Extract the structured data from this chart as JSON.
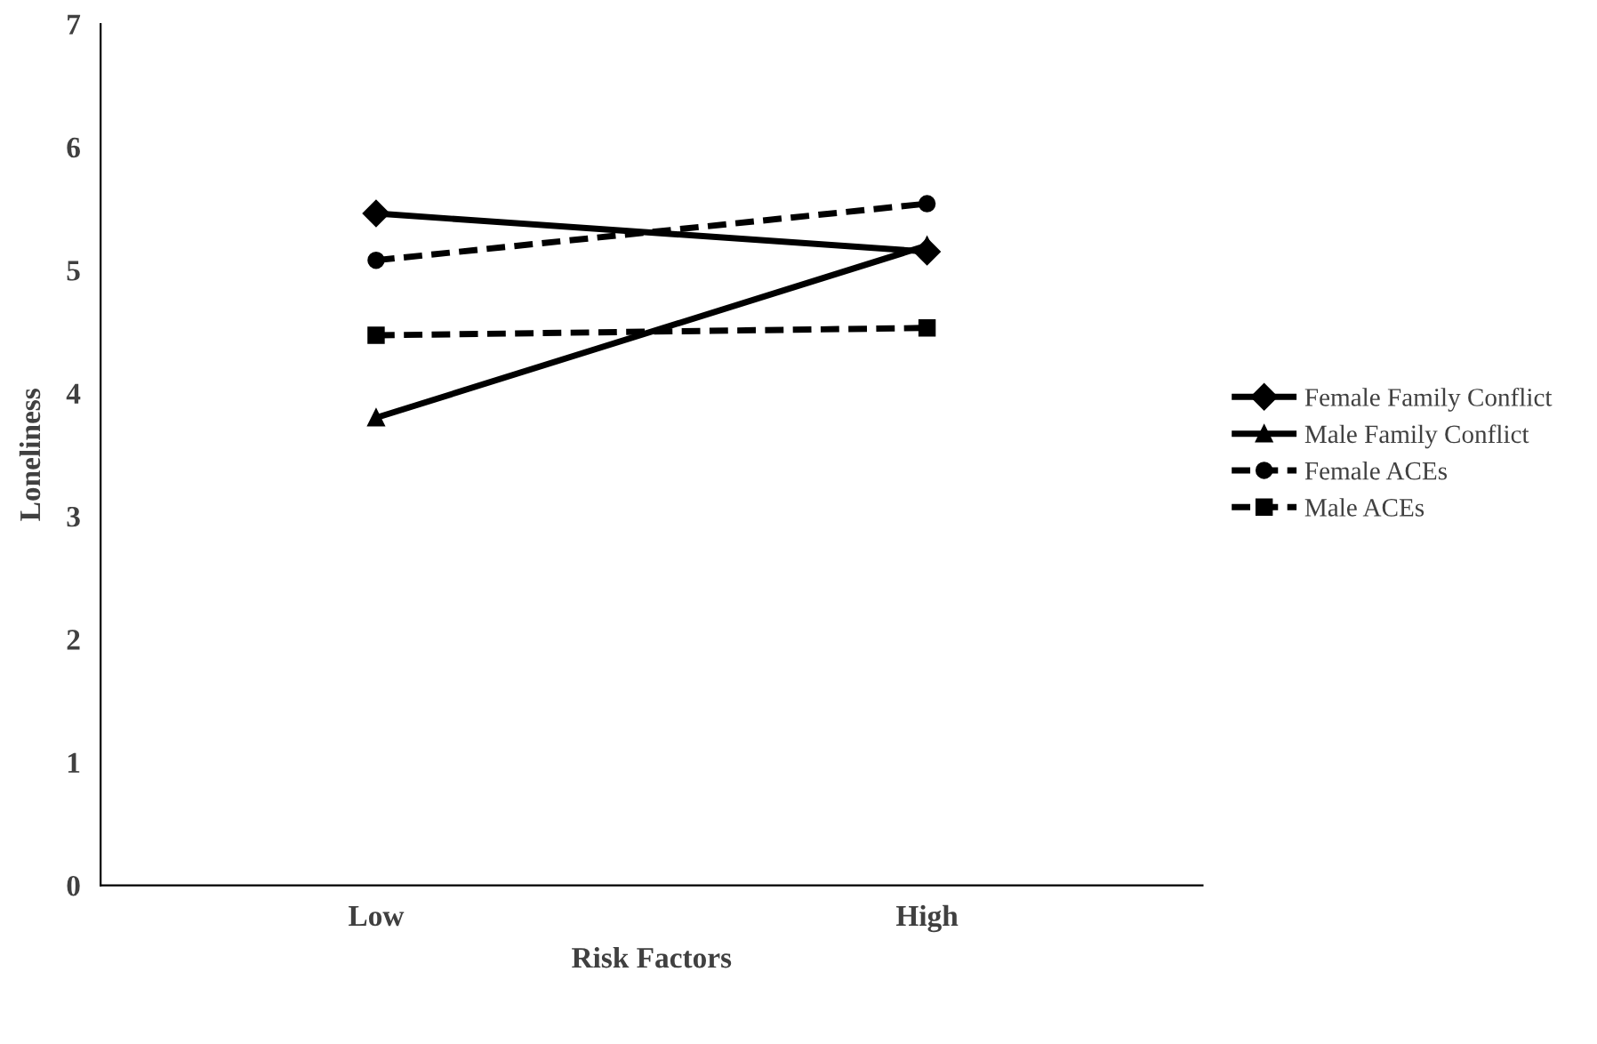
{
  "chart_data": {
    "type": "line",
    "xlabel": "Risk Factors",
    "ylabel": "Loneliness",
    "categories": [
      "Low",
      "High"
    ],
    "ylim": [
      0,
      7
    ],
    "yticks": [
      0,
      1,
      2,
      3,
      4,
      5,
      6,
      7
    ],
    "grid": false,
    "legend": "right",
    "series": [
      {
        "name": "Female Family Conflict",
        "color": "#000000",
        "values": [
          5.46,
          5.15
        ],
        "marker": "diamond",
        "line_style": "solid"
      },
      {
        "name": "Male Family Conflict",
        "color": "#000000",
        "values": [
          3.8,
          5.2
        ],
        "marker": "triangle",
        "line_style": "solid"
      },
      {
        "name": "Female ACEs",
        "color": "#000000",
        "values": [
          5.08,
          5.54
        ],
        "marker": "circle",
        "line_style": "dashed"
      },
      {
        "name": "Male ACEs",
        "color": "#000000",
        "values": [
          4.47,
          4.53
        ],
        "marker": "square",
        "line_style": "dashed"
      }
    ]
  }
}
